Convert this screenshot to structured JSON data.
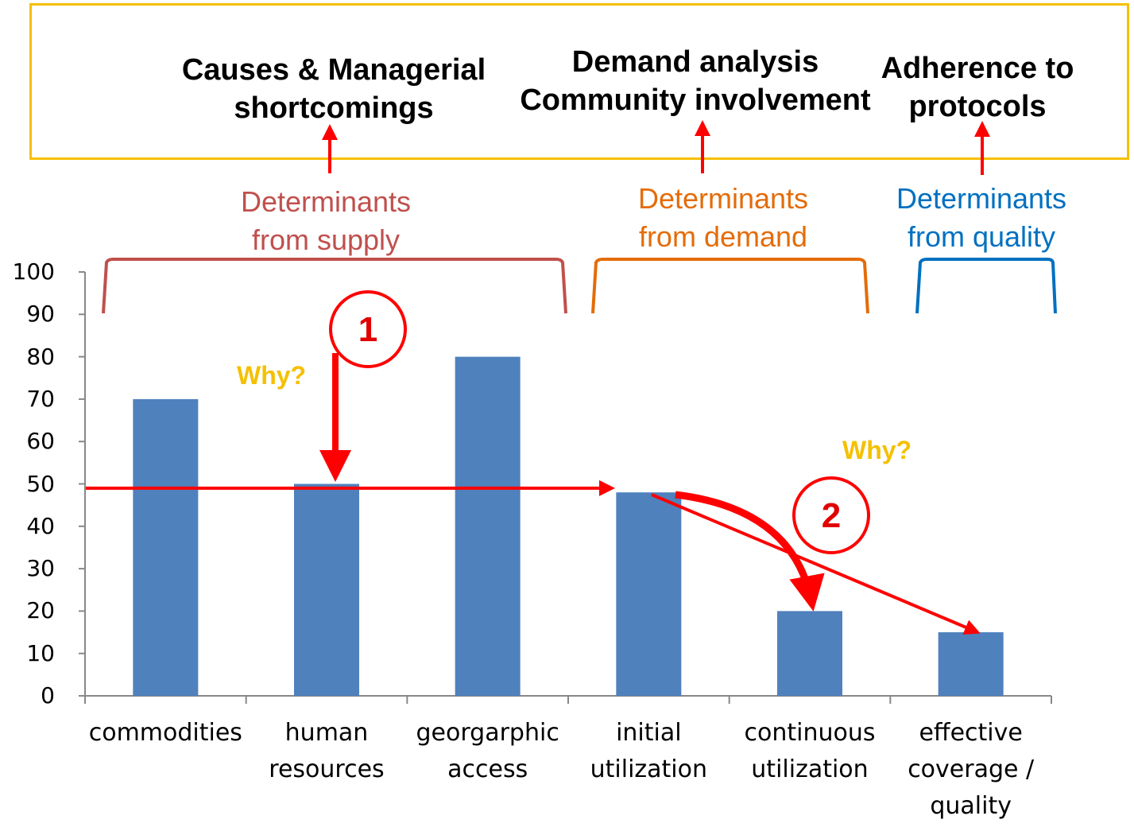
{
  "headers": [
    {
      "text": "Causes & Managerial\nshortcomings"
    },
    {
      "text": "Demand analysis\nCommunity involvement"
    },
    {
      "text": "Adherence to\nprotocols"
    }
  ],
  "groups": [
    {
      "label": "Determinants\nfrom supply",
      "color": "#c0504d"
    },
    {
      "label": "Determinants\nfrom demand",
      "color": "#e46c0a"
    },
    {
      "label": "Determinants\nfrom quality",
      "color": "#0070c0"
    }
  ],
  "annotations": {
    "why_1": "Why?",
    "why_2": "Why?",
    "marker_1": "1",
    "marker_2": "2"
  },
  "colors": {
    "bar": "#4f81bd",
    "arrow": "#ff0000",
    "box_border": "#f5c000",
    "why": "#f5c000"
  },
  "chart_data": {
    "type": "bar",
    "categories": [
      "commodities",
      "human\nresources",
      "georgarphic\naccess",
      "initial\nutilization",
      "continuous\nutilization",
      "effective\ncoverage /\nquality"
    ],
    "values": [
      70,
      50,
      80,
      48,
      20,
      15
    ],
    "ylim": [
      0,
      100
    ],
    "yticks": [
      0,
      10,
      20,
      30,
      40,
      50,
      60,
      70,
      80,
      90,
      100
    ],
    "title": "",
    "xlabel": "",
    "ylabel": "",
    "reference_line": 49
  }
}
